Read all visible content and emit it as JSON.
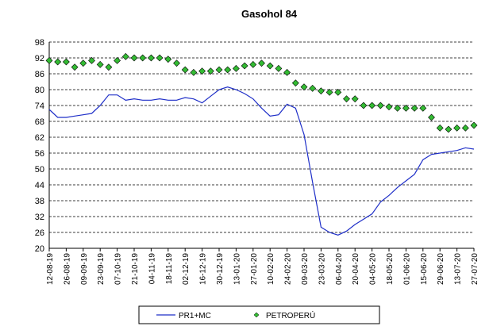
{
  "chart_data": {
    "type": "line",
    "title": "Gasohol 84",
    "categories": [
      "12-08-19",
      null,
      "26-08-19",
      null,
      "09-09-19",
      null,
      "23-09-19",
      null,
      "07-10-19",
      null,
      "21-10-19",
      null,
      "04-11-19",
      null,
      "18-11-19",
      null,
      "02-12-19",
      null,
      "16-12-19",
      null,
      "30-12-19",
      null,
      "13-01-20",
      null,
      "27-01-20",
      null,
      "10-02-20",
      null,
      "24-02-20",
      null,
      "09-03-20",
      null,
      "23-03-20",
      null,
      "06-04-20",
      null,
      "20-04-20",
      null,
      "04-05-20",
      null,
      "18-05-20",
      null,
      "01-06-20",
      null,
      "15-06-20",
      null,
      "29-06-20",
      null,
      "13-07-20",
      null,
      "27-07-20"
    ],
    "series": [
      {
        "name": "PR1+MC",
        "kind": "line",
        "color": "#1f2fc8",
        "values": [
          72.5,
          69.5,
          69.5,
          70,
          70.5,
          71,
          74,
          78,
          78,
          76,
          76.5,
          76,
          76,
          76.5,
          76,
          76,
          77,
          76.5,
          75,
          77.5,
          80,
          81,
          80,
          78.5,
          76.5,
          73,
          70,
          70.5,
          74.5,
          73,
          63,
          45,
          28,
          26,
          25,
          26.5,
          29,
          31,
          33,
          37.5,
          40,
          43,
          45.5,
          48,
          53.5,
          55.5,
          56,
          56.5,
          57,
          58,
          57.5
        ]
      },
      {
        "name": "PETROPERÚ",
        "kind": "marker",
        "color": "#33bb33",
        "values": [
          91,
          90.5,
          90.5,
          88.5,
          90,
          91,
          89.5,
          88.5,
          91,
          92.5,
          92,
          92,
          92,
          92,
          91.5,
          90,
          87.5,
          86.5,
          87,
          87,
          87.5,
          87.5,
          88,
          89,
          89.5,
          90,
          89,
          88,
          86.5,
          82.5,
          81,
          80.5,
          79.5,
          79,
          79,
          76.5,
          76.5,
          74,
          74,
          74,
          73.5,
          73,
          73,
          73,
          73,
          69.5,
          65.5,
          65,
          65.5,
          65.5,
          66.5
        ]
      }
    ],
    "ylim": [
      20,
      98
    ],
    "yticks": [
      20,
      26,
      32,
      38,
      44,
      50,
      56,
      62,
      68,
      74,
      80,
      86,
      92,
      98
    ],
    "grid": true,
    "legend": "bottom"
  }
}
